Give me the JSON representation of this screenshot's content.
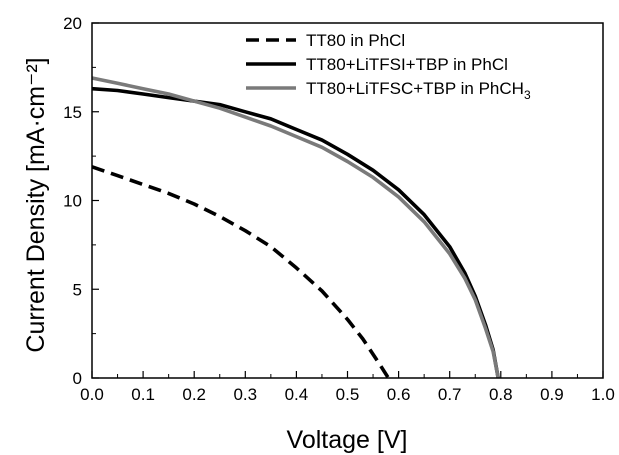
{
  "chart_data": {
    "type": "line",
    "xlabel": "Voltage [V]",
    "ylabel": "Current Density [mA·cm⁻²]",
    "xlim": [
      0.0,
      1.0
    ],
    "ylim": [
      0,
      20
    ],
    "x_ticks": [
      "0.0",
      "0.1",
      "0.2",
      "0.3",
      "0.4",
      "0.5",
      "0.6",
      "0.7",
      "0.8",
      "0.9",
      "1.0"
    ],
    "y_ticks": [
      "0",
      "5",
      "10",
      "15",
      "20"
    ],
    "grid": false,
    "legend_position": "top-right",
    "series": [
      {
        "name": "TT80 in PhCl",
        "legend_base": "TT80 in PhCl",
        "legend_sub": "",
        "color": "#000000",
        "style": "dashed",
        "points": [
          [
            0.0,
            11.9
          ],
          [
            0.05,
            11.4
          ],
          [
            0.1,
            10.9
          ],
          [
            0.15,
            10.4
          ],
          [
            0.2,
            9.8
          ],
          [
            0.25,
            9.1
          ],
          [
            0.3,
            8.3
          ],
          [
            0.35,
            7.4
          ],
          [
            0.4,
            6.2
          ],
          [
            0.45,
            4.9
          ],
          [
            0.5,
            3.3
          ],
          [
            0.53,
            2.2
          ],
          [
            0.56,
            0.9
          ],
          [
            0.58,
            0.0
          ]
        ]
      },
      {
        "name": "TT80+LiTFSI+TBP in PhCl",
        "legend_base": "TT80+LiTFSI+TBP in PhCl",
        "legend_sub": "",
        "color": "#000000",
        "style": "solid",
        "points": [
          [
            0.0,
            16.3
          ],
          [
            0.05,
            16.2
          ],
          [
            0.1,
            16.0
          ],
          [
            0.15,
            15.8
          ],
          [
            0.2,
            15.6
          ],
          [
            0.25,
            15.4
          ],
          [
            0.3,
            15.0
          ],
          [
            0.35,
            14.6
          ],
          [
            0.4,
            14.0
          ],
          [
            0.45,
            13.4
          ],
          [
            0.5,
            12.6
          ],
          [
            0.55,
            11.7
          ],
          [
            0.6,
            10.6
          ],
          [
            0.65,
            9.2
          ],
          [
            0.7,
            7.4
          ],
          [
            0.73,
            5.9
          ],
          [
            0.75,
            4.6
          ],
          [
            0.77,
            3.0
          ],
          [
            0.785,
            1.6
          ],
          [
            0.795,
            0.0
          ]
        ]
      },
      {
        "name": "TT80+LiTFSC+TBP in PhCH3",
        "legend_base": "TT80+LiTFSC+TBP in PhCH",
        "legend_sub": "3",
        "color": "#7a7a7a",
        "style": "solid",
        "points": [
          [
            0.0,
            16.9
          ],
          [
            0.05,
            16.6
          ],
          [
            0.1,
            16.3
          ],
          [
            0.15,
            16.0
          ],
          [
            0.2,
            15.6
          ],
          [
            0.25,
            15.2
          ],
          [
            0.3,
            14.7
          ],
          [
            0.35,
            14.2
          ],
          [
            0.4,
            13.6
          ],
          [
            0.45,
            13.0
          ],
          [
            0.5,
            12.2
          ],
          [
            0.55,
            11.3
          ],
          [
            0.6,
            10.2
          ],
          [
            0.65,
            8.8
          ],
          [
            0.7,
            7.0
          ],
          [
            0.73,
            5.6
          ],
          [
            0.75,
            4.4
          ],
          [
            0.77,
            2.8
          ],
          [
            0.785,
            1.5
          ],
          [
            0.795,
            0.0
          ]
        ]
      }
    ]
  }
}
